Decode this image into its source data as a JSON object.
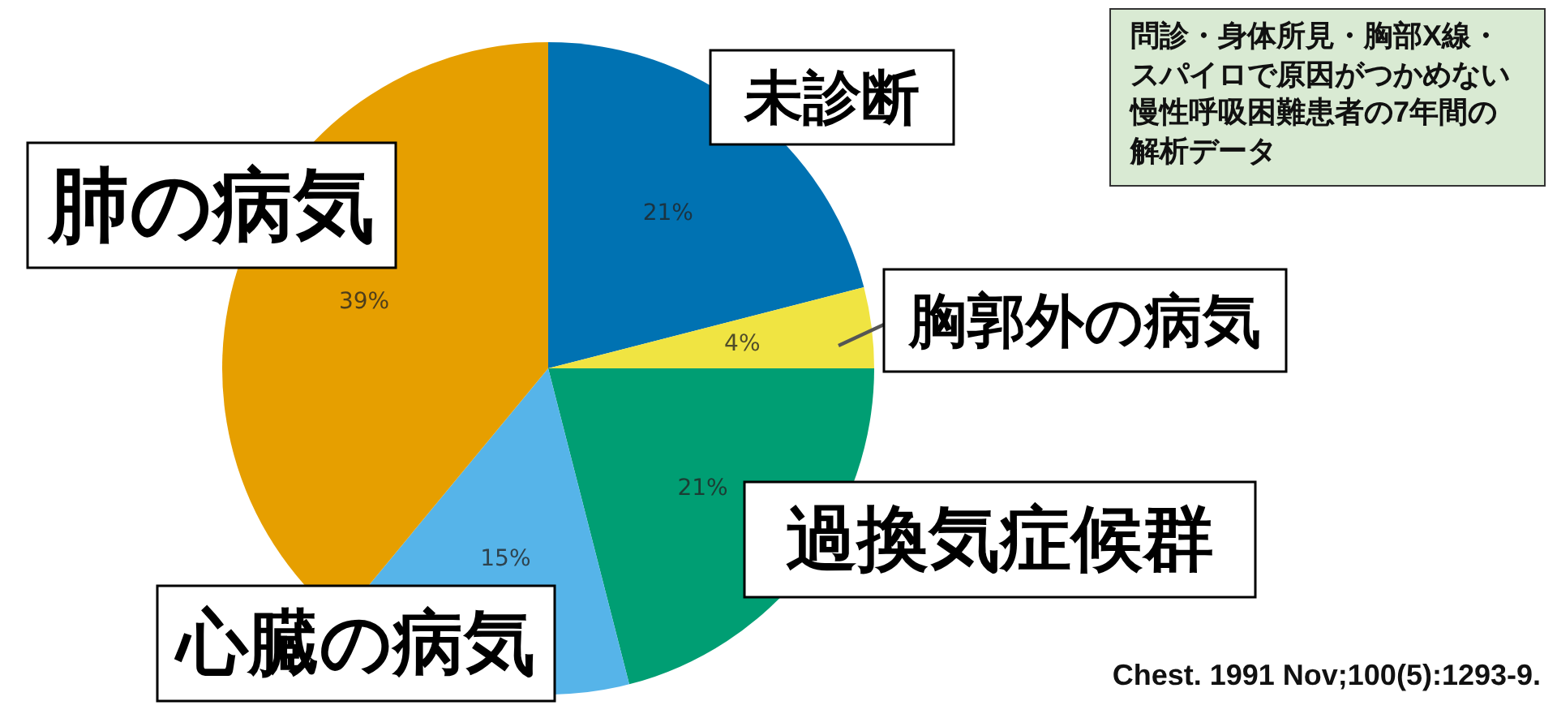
{
  "chart_data": {
    "type": "pie",
    "categories": [
      "未診断",
      "胸郭外の病気",
      "過換気症候群",
      "心臓の病気",
      "肺の病気"
    ],
    "values": [
      21,
      4,
      21,
      15,
      39
    ],
    "colors": [
      "#0072b2",
      "#f0e442",
      "#009e73",
      "#56b4e9",
      "#e69f00"
    ],
    "value_labels": [
      "21%",
      "4%",
      "21%",
      "15%",
      "39%"
    ],
    "annotations": [
      "問診・身体所見・胸部X線・スパイロで原因がつかめない慢性呼吸困難患者の7年間の解析データ",
      "Chest. 1991 Nov;100(5):1293-9."
    ]
  }
}
